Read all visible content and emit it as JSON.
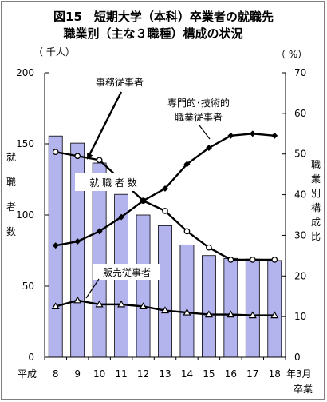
{
  "chart_data": {
    "type": "bar",
    "title_line1": "図15　短期大学（本科）卒業者の就職先",
    "title_line2": "職業別（主な３職種）構成の状況",
    "y_left_unit": "（ 千人）",
    "y_right_unit": "（ %）",
    "y_left_label": [
      "就",
      "職",
      "者",
      "数"
    ],
    "y_right_label": [
      "職",
      "業",
      "別",
      "構",
      "成",
      "比"
    ],
    "x_prefix": "平成",
    "x_suffix": "年3月",
    "x_suffix2": "卒業",
    "categories": [
      "8",
      "9",
      "10",
      "11",
      "12",
      "13",
      "14",
      "15",
      "16",
      "17",
      "18"
    ],
    "ylim_left": [
      0,
      200
    ],
    "ylim_right": [
      0,
      70
    ],
    "y_left_ticks": [
      0,
      50,
      100,
      150,
      200
    ],
    "y_right_ticks": [
      0,
      10,
      20,
      30,
      40,
      50,
      60,
      70
    ],
    "bars": {
      "name": "就 職 者 数",
      "axis": "left",
      "values": [
        155.5,
        150.5,
        136.5,
        114.5,
        100,
        92.5,
        79,
        71.5,
        69.5,
        69,
        68
      ],
      "color": "#b3b3ee"
    },
    "series": [
      {
        "name": "事務従事者",
        "axis": "right",
        "marker": "circle",
        "values": [
          50.5,
          49.5,
          48.5,
          43.5,
          38.5,
          36,
          31,
          27,
          24,
          24,
          24
        ]
      },
      {
        "name": "専門的･技術的職業従事者",
        "axis": "right",
        "marker": "diamond",
        "values": [
          27.5,
          28.5,
          31,
          34.5,
          38.5,
          41.5,
          47.5,
          51.5,
          54.5,
          55,
          54.5
        ]
      },
      {
        "name": "販売従事者",
        "axis": "right",
        "marker": "triangle",
        "values": [
          12.5,
          14,
          13,
          13,
          12.5,
          11.5,
          11,
          10.5,
          10.5,
          10.3,
          10.3
        ]
      }
    ],
    "annotations": {
      "jimu": "事務従事者",
      "senmon_line1": "専門的･技術的",
      "senmon_line2": "職業従事者",
      "shushoku": "就 職 者 数",
      "hanbai": "販売従事者"
    },
    "grid": false
  }
}
